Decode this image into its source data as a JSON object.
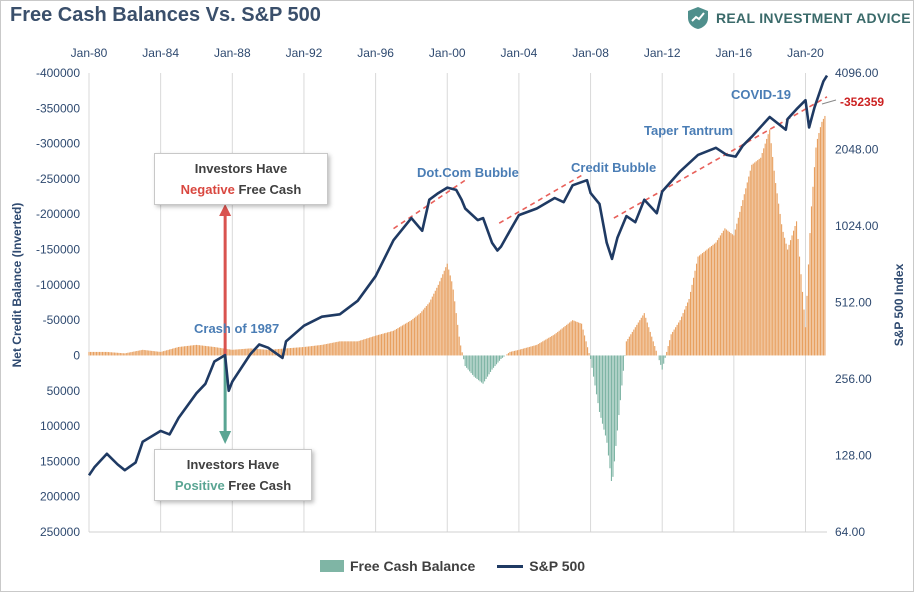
{
  "header": {
    "title": "Free Cash Balances Vs. S&P 500",
    "brand": "REAL INVESTMENT ADVICE"
  },
  "colors": {
    "positive_bar": "#e8a060",
    "negative_bar": "#7fb5a5",
    "sp500_line": "#1f3a63",
    "trend_line": "#e8605a",
    "negative_arrow": "#d9534f",
    "positive_arrow": "#5aa593",
    "annotation_text": "#4a7db5",
    "last_value_label": "#cc2222"
  },
  "annotations": {
    "box_negative": {
      "line1": "Investors Have",
      "word": "Negative",
      "rest": " Free Cash"
    },
    "box_positive": {
      "line1": "Investors Have",
      "word": "Positive",
      "rest": " Free Cash"
    },
    "labels": [
      "Crash of 1987",
      "Dot.Com Bubble",
      "Credit Bubble",
      "Taper Tantrum",
      "COVID-19"
    ],
    "last_value": "-352359"
  },
  "legend": {
    "items": [
      {
        "label": "Free Cash Balance",
        "kind": "bar"
      },
      {
        "label": "S&P 500",
        "kind": "line"
      }
    ]
  },
  "chart_data": {
    "type": "bar+line",
    "title": "Free Cash Balances Vs. S&P 500",
    "x_tick_labels": [
      "Jan-80",
      "Jan-84",
      "Jan-88",
      "Jan-92",
      "Jan-96",
      "Jan-00",
      "Jan-04",
      "Jan-08",
      "Jan-12",
      "Jan-16",
      "Jan-20"
    ],
    "x_range": [
      1980.0,
      2021.2
    ],
    "left_axis": {
      "title": "Net Credit Balance (Inverted)",
      "inverted": true,
      "range": [
        -400000,
        250000
      ],
      "tick_labels": [
        "-400000",
        "-350000",
        "-300000",
        "-250000",
        "-200000",
        "-150000",
        "-100000",
        "-50000",
        "0",
        "50000",
        "100000",
        "150000",
        "200000",
        "250000"
      ]
    },
    "right_axis": {
      "title": "S&P 500 Index",
      "scale": "log2",
      "range": [
        64,
        4096
      ],
      "tick_labels": [
        "4096.00",
        "2048.00",
        "1024.00",
        "512.00",
        "256.00",
        "128.00",
        "64.00"
      ]
    },
    "grid": "vertical",
    "legend_position": "bottom",
    "series": [
      {
        "name": "Free Cash Balance",
        "kind": "bar",
        "axis": "left",
        "x": [
          1980,
          1981,
          1982,
          1983,
          1984,
          1985,
          1986,
          1987,
          1988,
          1989,
          1990,
          1991,
          1992,
          1993,
          1994,
          1995,
          1996,
          1997,
          1998,
          1998.5,
          1999,
          1999.5,
          2000,
          2000.3,
          2000.7,
          2001,
          2001.5,
          2002,
          2002.5,
          2003,
          2003.5,
          2004,
          2005,
          2006,
          2006.5,
          2007,
          2007.5,
          2008,
          2008.5,
          2008.9,
          2009.2,
          2009.6,
          2010,
          2010.5,
          2011,
          2011.5,
          2012,
          2012.5,
          2013,
          2013.5,
          2014,
          2014.5,
          2015,
          2015.5,
          2016,
          2016.5,
          2017,
          2017.5,
          2018,
          2018.3,
          2018.7,
          2019,
          2019.5,
          2020,
          2020.3,
          2020.6,
          2020.9,
          2021.1
        ],
        "values": [
          -5000,
          -5000,
          -3000,
          -8000,
          -5000,
          -12000,
          -15000,
          -12000,
          -8000,
          -10000,
          -8000,
          -10000,
          -12000,
          -15000,
          -20000,
          -20000,
          -28000,
          -35000,
          -50000,
          -60000,
          -75000,
          -100000,
          -130000,
          -100000,
          -20000,
          15000,
          30000,
          40000,
          20000,
          5000,
          -5000,
          -8000,
          -15000,
          -30000,
          -40000,
          -50000,
          -45000,
          5000,
          80000,
          120000,
          185000,
          80000,
          -20000,
          -40000,
          -60000,
          -20000,
          20000,
          -30000,
          -50000,
          -80000,
          -140000,
          -150000,
          -160000,
          -180000,
          -170000,
          -220000,
          -270000,
          -280000,
          -320000,
          -250000,
          -180000,
          -150000,
          -190000,
          -40000,
          -200000,
          -300000,
          -330000,
          -340000
        ]
      },
      {
        "name": "S&P 500",
        "kind": "line",
        "axis": "right",
        "x": [
          1980,
          1980.3,
          1981,
          1981.6,
          1982,
          1982.6,
          1983,
          1984,
          1984.5,
          1985,
          1986,
          1986.5,
          1987,
          1987.6,
          1987.8,
          1988,
          1989,
          1989.5,
          1990,
          1990.8,
          1991,
          1992,
          1993,
          1994,
          1995,
          1996,
          1997,
          1998,
          1998.6,
          1999,
          1999.5,
          2000,
          2000.5,
          2000.8,
          2001,
          2001.7,
          2002,
          2002.5,
          2002.8,
          2003,
          2003.5,
          2004,
          2005,
          2006,
          2006.5,
          2007,
          2007.8,
          2008,
          2008.5,
          2008.9,
          2009.2,
          2009.5,
          2010,
          2010.5,
          2011,
          2011.7,
          2012,
          2013,
          2014,
          2015,
          2015.6,
          2016.1,
          2016.5,
          2017,
          2018,
          2018.9,
          2019,
          2019.5,
          2020,
          2020.2,
          2020.5,
          2021,
          2021.2
        ],
        "values": [
          107,
          115,
          130,
          118,
          112,
          120,
          145,
          160,
          155,
          180,
          225,
          245,
          300,
          318,
          230,
          250,
          320,
          350,
          340,
          310,
          360,
          415,
          450,
          460,
          520,
          650,
          900,
          1100,
          980,
          1300,
          1380,
          1450,
          1420,
          1300,
          1200,
          1080,
          1100,
          880,
          820,
          850,
          980,
          1130,
          1200,
          1320,
          1270,
          1480,
          1550,
          1380,
          1250,
          880,
          760,
          920,
          1120,
          1060,
          1300,
          1150,
          1400,
          1680,
          1950,
          2080,
          1950,
          1920,
          2120,
          2300,
          2750,
          2450,
          2700,
          2950,
          3200,
          2500,
          3000,
          3800,
          4000
        ]
      }
    ],
    "trend_lines": [
      {
        "from": [
          1997,
          1000
        ],
        "to": [
          2001,
          1550
        ]
      },
      {
        "from": [
          2002.9,
          1050
        ],
        "to": [
          2007.5,
          1620
        ]
      },
      {
        "from": [
          2009.3,
          1100
        ],
        "to": [
          2021.2,
          3300
        ]
      }
    ]
  }
}
